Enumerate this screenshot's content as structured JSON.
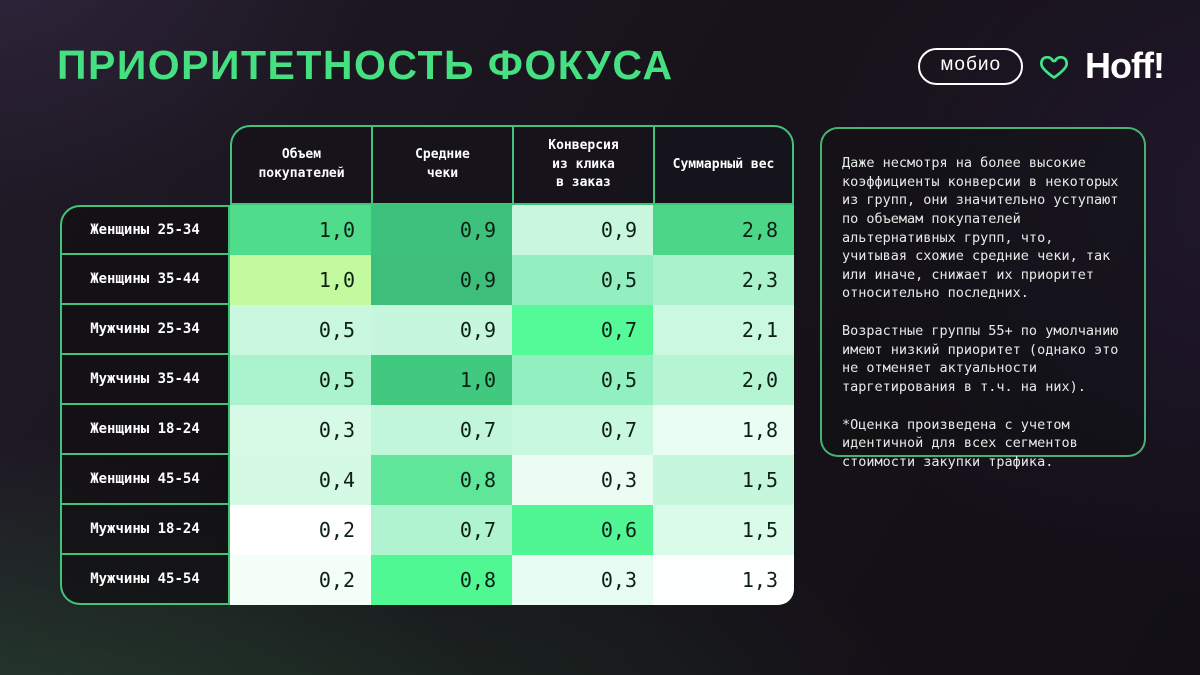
{
  "title": "ПРИОРИТЕТНОСТЬ ФОКУСА",
  "logos": {
    "mobio_label": "мобио",
    "heart_icon": "heart-outline",
    "hoff_label": "Hoff!"
  },
  "colors": {
    "accent_green": "#45E081",
    "table_border_green": "#3FC47A",
    "header_bg": "#16131B",
    "cell_text": "#0E2015"
  },
  "table": {
    "columns": [
      "Объем\nпокупателей",
      "Средние\nчеки",
      "Конверсия\nиз клика\nв заказ",
      "Суммарный вес"
    ],
    "rows": [
      {
        "label": "Женщины 25-34",
        "values": [
          "1,0",
          "0,9",
          "0,9",
          "2,8"
        ],
        "colors": [
          "#4FDC8B",
          "#3EC17D",
          "#C9F7DE",
          "#4CD788"
        ]
      },
      {
        "label": "Женщины 35-44",
        "values": [
          "1,0",
          "0,9",
          "0,5",
          "2,3"
        ],
        "colors": [
          "#C4FA9F",
          "#3EBE7B",
          "#93EFC0",
          "#A9F2CC"
        ]
      },
      {
        "label": "Мужчины 25-34",
        "values": [
          "0,5",
          "0,9",
          "0,7",
          "2,1"
        ],
        "colors": [
          "#C9F8DF",
          "#C6F7DD",
          "#54FA97",
          "#CBF8E1"
        ]
      },
      {
        "label": "Мужчины 35-44",
        "values": [
          "0,5",
          "1,0",
          "0,5",
          "2,0"
        ],
        "colors": [
          "#ABF3CE",
          "#42C980",
          "#92EFC0",
          "#B5F5D3"
        ]
      },
      {
        "label": "Женщины 18-24",
        "values": [
          "0,3",
          "0,7",
          "0,7",
          "1,8"
        ],
        "colors": [
          "#D7FAE7",
          "#C2F6DA",
          "#C9F8E0",
          "#E9FDF2"
        ]
      },
      {
        "label": "Женщины 45-54",
        "values": [
          "0,4",
          "0,8",
          "0,3",
          "1,5"
        ],
        "colors": [
          "#D4FAE5",
          "#5FE69B",
          "#EBFDF3",
          "#C5F7DC"
        ]
      },
      {
        "label": "Мужчины 18-24",
        "values": [
          "0,2",
          "0,7",
          "0,6",
          "1,5"
        ],
        "colors": [
          "#FFFFFF",
          "#AFF3D0",
          "#50F694",
          "#DBFBEA"
        ]
      },
      {
        "label": "Мужчины 45-54",
        "values": [
          "0,2",
          "0,8",
          "0,3",
          "1,3"
        ],
        "colors": [
          "#F3FEF8",
          "#4FF893",
          "#E8FDF2",
          "#FDFFFE"
        ]
      }
    ]
  },
  "notes": {
    "paragraphs": [
      "Даже несмотря на более высокие коэффициенты конверсии в некоторых из групп, они значительно уступают по объемам покупателей альтернативных групп, что, учитывая схожие средние чеки, так или иначе, снижает их приоритет относительно последних.",
      "Возрастные группы 55+ по умолчанию имеют низкий приоритет (однако это не отменяет актуальности таргетирования в т.ч. на них).",
      "*Оценка произведена с учетом идентичной для всех сегментов стоимости закупки трафика."
    ]
  },
  "chart_data": {
    "type": "heatmap",
    "title": "ПРИОРИТЕТНОСТЬ ФОКУСА",
    "rows": [
      "Женщины 25-34",
      "Женщины 35-44",
      "Мужчины 25-34",
      "Мужчины 35-44",
      "Женщины 18-24",
      "Женщины 45-54",
      "Мужчины 18-24",
      "Мужчины 45-54"
    ],
    "columns": [
      "Объем покупателей",
      "Средние чеки",
      "Конверсия из клика в заказ",
      "Суммарный вес"
    ],
    "values": [
      [
        1.0,
        0.9,
        0.9,
        2.8
      ],
      [
        1.0,
        0.9,
        0.5,
        2.3
      ],
      [
        0.5,
        0.9,
        0.7,
        2.1
      ],
      [
        0.5,
        1.0,
        0.5,
        2.0
      ],
      [
        0.3,
        0.7,
        0.7,
        1.8
      ],
      [
        0.4,
        0.8,
        0.3,
        1.5
      ],
      [
        0.2,
        0.7,
        0.6,
        1.5
      ],
      [
        0.2,
        0.8,
        0.3,
        1.3
      ]
    ],
    "legend_position": "none",
    "color_scale": "white-to-green (per cell, higher = more saturated green)"
  }
}
